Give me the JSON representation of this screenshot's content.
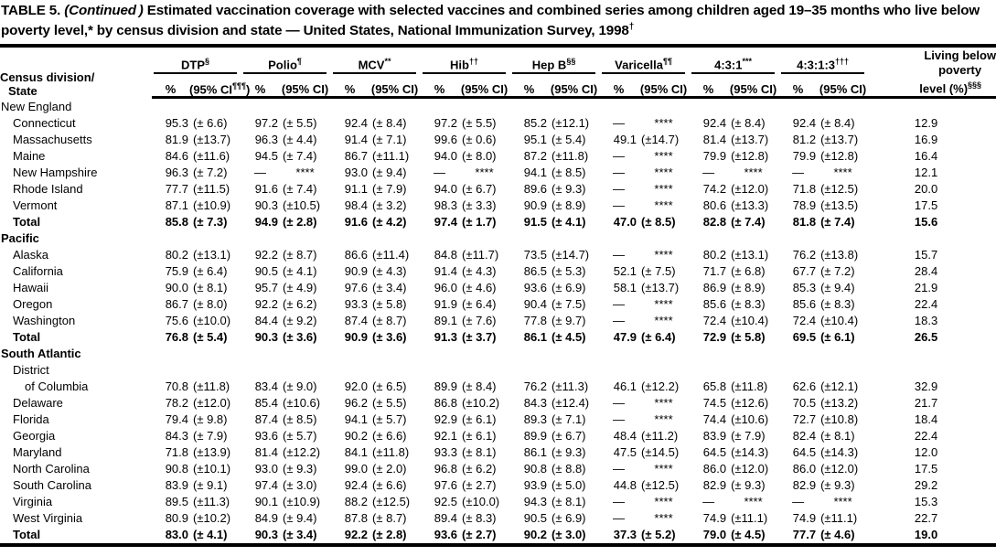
{
  "title": {
    "p1": "TABLE 5. ",
    "p2": "(Continued )",
    "p3": " Estimated vaccination coverage with selected vaccines and combined series among children aged 19–35 months who live below poverty level,* by census division and state — United States, National Immunization Survey, 1998",
    "sup": "†"
  },
  "header": {
    "col1_line1": "Census division/",
    "col1_line2": "State",
    "pct_label": "%",
    "ci_label": "(95% CI)",
    "ci_first": {
      "prefix": "(95% CI",
      "sup": "¶¶¶",
      "close": ")"
    },
    "groups": [
      {
        "id": "dtp",
        "label": "DTP",
        "sup": "§"
      },
      {
        "id": "polio",
        "label": "Polio",
        "sup": "¶"
      },
      {
        "id": "mcv",
        "label": "MCV",
        "sup": "**"
      },
      {
        "id": "hib",
        "label": "Hib",
        "sup": "††"
      },
      {
        "id": "hep-b",
        "label": "Hep B",
        "sup": "§§"
      },
      {
        "id": "varicella",
        "label": "Varicella",
        "sup": "¶¶"
      },
      {
        "id": "4-3-1",
        "label": "4:3:1",
        "sup": "***"
      },
      {
        "id": "4-3-1-3",
        "label": "4:3:1:3",
        "sup": "†††"
      }
    ],
    "poverty": {
      "l1": "Living below",
      "l2": "poverty",
      "l3": "level (%)",
      "sup": "§§§"
    }
  },
  "sections": [
    {
      "label": "New England",
      "bold": false,
      "rows": [
        {
          "label": "Connecticut",
          "cells": [
            "95.3",
            "(± 6.6)",
            "97.2",
            "(± 5.5)",
            "92.4",
            "(± 8.4)",
            "97.2",
            "(± 5.5)",
            "85.2",
            "(±12.1)",
            "—",
            "****",
            "92.4",
            "(± 8.4)",
            "92.4",
            "(± 8.4)",
            "12.9"
          ]
        },
        {
          "label": "Massachusetts",
          "cells": [
            "81.9",
            "(±13.7)",
            "96.3",
            "(± 4.4)",
            "91.4",
            "(± 7.1)",
            "99.6",
            "(± 0.6)",
            "95.1",
            "(± 5.4)",
            "49.1",
            "(±14.7)",
            "81.4",
            "(±13.7)",
            "81.2",
            "(±13.7)",
            "16.9"
          ]
        },
        {
          "label": "Maine",
          "cells": [
            "84.6",
            "(±11.6)",
            "94.5",
            "(± 7.4)",
            "86.7",
            "(±11.1)",
            "94.0",
            "(± 8.0)",
            "87.2",
            "(±11.8)",
            "—",
            "****",
            "79.9",
            "(±12.8)",
            "79.9",
            "(±12.8)",
            "16.4"
          ]
        },
        {
          "label": "New Hampshire",
          "cells": [
            "96.3",
            "(± 7.2)",
            "—",
            "****",
            "93.0",
            "(± 9.4)",
            "—",
            "****",
            "94.1",
            "(± 8.5)",
            "—",
            "****",
            "—",
            "****",
            "—",
            "****",
            "12.1"
          ]
        },
        {
          "label": "Rhode Island",
          "cells": [
            "77.7",
            "(±11.5)",
            "91.6",
            "(± 7.4)",
            "91.1",
            "(± 7.9)",
            "94.0",
            "(± 6.7)",
            "89.6",
            "(± 9.3)",
            "—",
            "****",
            "74.2",
            "(±12.0)",
            "71.8",
            "(±12.5)",
            "20.0"
          ]
        },
        {
          "label": "Vermont",
          "cells": [
            "87.1",
            "(±10.9)",
            "90.3",
            "(±10.5)",
            "98.4",
            "(± 3.2)",
            "98.3",
            "(± 3.3)",
            "90.9",
            "(± 8.9)",
            "—",
            "****",
            "80.6",
            "(±13.3)",
            "78.9",
            "(±13.5)",
            "17.5"
          ]
        },
        {
          "label": "Total",
          "total": true,
          "cells": [
            "85.8",
            "(± 7.3)",
            "94.9",
            "(± 2.8)",
            "91.6",
            "(± 4.2)",
            "97.4",
            "(± 1.7)",
            "91.5",
            "(± 4.1)",
            "47.0",
            "(± 8.5)",
            "82.8",
            "(± 7.4)",
            "81.8",
            "(± 7.4)",
            "15.6"
          ]
        }
      ]
    },
    {
      "label": "Pacific",
      "bold": true,
      "rows": [
        {
          "label": "Alaska",
          "cells": [
            "80.2",
            "(±13.1)",
            "92.2",
            "(± 8.7)",
            "86.6",
            "(±11.4)",
            "84.8",
            "(±11.7)",
            "73.5",
            "(±14.7)",
            "—",
            "****",
            "80.2",
            "(±13.1)",
            "76.2",
            "(±13.8)",
            "15.7"
          ]
        },
        {
          "label": "California",
          "cells": [
            "75.9",
            "(± 6.4)",
            "90.5",
            "(± 4.1)",
            "90.9",
            "(± 4.3)",
            "91.4",
            "(± 4.3)",
            "86.5",
            "(± 5.3)",
            "52.1",
            "(± 7.5)",
            "71.7",
            "(± 6.8)",
            "67.7",
            "(± 7.2)",
            "28.4"
          ]
        },
        {
          "label": "Hawaii",
          "cells": [
            "90.0",
            "(± 8.1)",
            "95.7",
            "(± 4.9)",
            "97.6",
            "(± 3.4)",
            "96.0",
            "(± 4.6)",
            "93.6",
            "(± 6.9)",
            "58.1",
            "(±13.7)",
            "86.9",
            "(± 8.9)",
            "85.3",
            "(± 9.4)",
            "21.9"
          ]
        },
        {
          "label": "Oregon",
          "cells": [
            "86.7",
            "(± 8.0)",
            "92.2",
            "(± 6.2)",
            "93.3",
            "(± 5.8)",
            "91.9",
            "(± 6.4)",
            "90.4",
            "(± 7.5)",
            "—",
            "****",
            "85.6",
            "(± 8.3)",
            "85.6",
            "(± 8.3)",
            "22.4"
          ]
        },
        {
          "label": "Washington",
          "cells": [
            "75.6",
            "(±10.0)",
            "84.4",
            "(± 9.2)",
            "87.4",
            "(± 8.7)",
            "89.1",
            "(± 7.6)",
            "77.8",
            "(± 9.7)",
            "—",
            "****",
            "72.4",
            "(±10.4)",
            "72.4",
            "(±10.4)",
            "18.3"
          ]
        },
        {
          "label": "Total",
          "total": true,
          "cells": [
            "76.8",
            "(± 5.4)",
            "90.3",
            "(± 3.6)",
            "90.9",
            "(± 3.6)",
            "91.3",
            "(± 3.7)",
            "86.1",
            "(± 4.5)",
            "47.9",
            "(± 6.4)",
            "72.9",
            "(± 5.8)",
            "69.5",
            "(± 6.1)",
            "26.5"
          ]
        }
      ]
    },
    {
      "label": "South Atlantic",
      "bold": true,
      "rows": [
        {
          "label": "District",
          "cells": null
        },
        {
          "label": "of Columbia",
          "indent": 2,
          "cells": [
            "70.8",
            "(±11.8)",
            "83.4",
            "(± 9.0)",
            "92.0",
            "(± 6.5)",
            "89.9",
            "(± 8.4)",
            "76.2",
            "(±11.3)",
            "46.1",
            "(±12.2)",
            "65.8",
            "(±11.8)",
            "62.6",
            "(±12.1)",
            "32.9"
          ]
        },
        {
          "label": "Delaware",
          "cells": [
            "78.2",
            "(±12.0)",
            "85.4",
            "(±10.6)",
            "96.2",
            "(± 5.5)",
            "86.8",
            "(±10.2)",
            "84.3",
            "(±12.4)",
            "—",
            "****",
            "74.5",
            "(±12.6)",
            "70.5",
            "(±13.2)",
            "21.7"
          ]
        },
        {
          "label": "Florida",
          "cells": [
            "79.4",
            "(± 9.8)",
            "87.4",
            "(± 8.5)",
            "94.1",
            "(± 5.7)",
            "92.9",
            "(± 6.1)",
            "89.3",
            "(± 7.1)",
            "—",
            "****",
            "74.4",
            "(±10.6)",
            "72.7",
            "(±10.8)",
            "18.4"
          ]
        },
        {
          "label": "Georgia",
          "cells": [
            "84.3",
            "(± 7.9)",
            "93.6",
            "(± 5.7)",
            "90.2",
            "(± 6.6)",
            "92.1",
            "(± 6.1)",
            "89.9",
            "(± 6.7)",
            "48.4",
            "(±11.2)",
            "83.9",
            "(± 7.9)",
            "82.4",
            "(± 8.1)",
            "22.4"
          ]
        },
        {
          "label": "Maryland",
          "cells": [
            "71.8",
            "(±13.9)",
            "81.4",
            "(±12.2)",
            "84.1",
            "(±11.8)",
            "93.3",
            "(± 8.1)",
            "86.1",
            "(± 9.3)",
            "47.5",
            "(±14.5)",
            "64.5",
            "(±14.3)",
            "64.5",
            "(±14.3)",
            "12.0"
          ]
        },
        {
          "label": "North Carolina",
          "cells": [
            "90.8",
            "(±10.1)",
            "93.0",
            "(± 9.3)",
            "99.0",
            "(± 2.0)",
            "96.8",
            "(± 6.2)",
            "90.8",
            "(± 8.8)",
            "—",
            "****",
            "86.0",
            "(±12.0)",
            "86.0",
            "(±12.0)",
            "17.5"
          ]
        },
        {
          "label": "South Carolina",
          "cells": [
            "83.9",
            "(± 9.1)",
            "97.4",
            "(± 3.0)",
            "92.4",
            "(± 6.6)",
            "97.6",
            "(± 2.7)",
            "93.9",
            "(± 5.0)",
            "44.8",
            "(±12.5)",
            "82.9",
            "(± 9.3)",
            "82.9",
            "(± 9.3)",
            "29.2"
          ]
        },
        {
          "label": "Virginia",
          "cells": [
            "89.5",
            "(±11.3)",
            "90.1",
            "(±10.9)",
            "88.2",
            "(±12.5)",
            "92.5",
            "(±10.0)",
            "94.3",
            "(± 8.1)",
            "—",
            "****",
            "—",
            "****",
            "—",
            "****",
            "15.3"
          ]
        },
        {
          "label": "West Virginia",
          "cells": [
            "80.9",
            "(±10.2)",
            "84.9",
            "(± 9.4)",
            "87.8",
            "(± 8.7)",
            "89.4",
            "(± 8.3)",
            "90.5",
            "(± 6.9)",
            "—",
            "****",
            "74.9",
            "(±11.1)",
            "74.9",
            "(±11.1)",
            "22.7"
          ]
        },
        {
          "label": "Total",
          "total": true,
          "cells": [
            "83.0",
            "(± 4.1)",
            "90.3",
            "(± 3.4)",
            "92.2",
            "(± 2.8)",
            "93.6",
            "(± 2.7)",
            "90.2",
            "(± 3.0)",
            "37.3",
            "(± 5.2)",
            "79.0",
            "(± 4.5)",
            "77.7",
            "(± 4.6)",
            "19.0"
          ]
        }
      ]
    }
  ]
}
